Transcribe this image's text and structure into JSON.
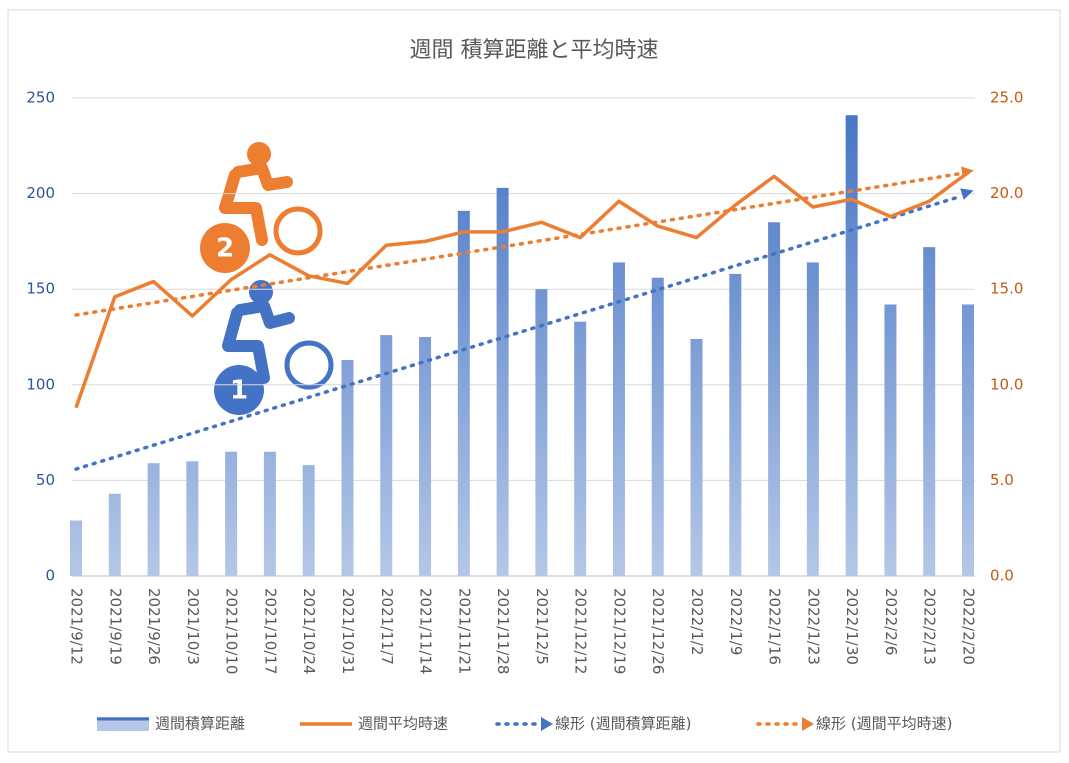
{
  "chart_data": {
    "type": "bar_line",
    "title": "週間 積算距離と平均時速",
    "categories": [
      "2021/9/12",
      "2021/9/19",
      "2021/9/26",
      "2021/10/3",
      "2021/10/10",
      "2021/10/17",
      "2021/10/24",
      "2021/10/31",
      "2021/11/7",
      "2021/11/14",
      "2021/11/21",
      "2021/11/28",
      "2021/12/5",
      "2021/12/12",
      "2021/12/19",
      "2021/12/26",
      "2022/1/2",
      "2022/1/9",
      "2022/1/16",
      "2022/1/23",
      "2022/1/30",
      "2022/2/6",
      "2022/2/13",
      "2022/2/20"
    ],
    "series": [
      {
        "name": "週間積算距離",
        "type": "bar",
        "color": "#4472c4",
        "light_color": "#b4c7e7",
        "values": [
          29,
          43,
          59,
          60,
          65,
          65,
          58,
          113,
          126,
          125,
          191,
          203,
          150,
          133,
          164,
          156,
          124,
          158,
          185,
          164,
          241,
          142,
          172,
          142
        ]
      },
      {
        "name": "週間平均時速",
        "type": "line",
        "axis": "y2",
        "color": "#ed7d31",
        "values": [
          8.8,
          14.6,
          15.4,
          13.6,
          15.5,
          16.8,
          15.7,
          15.3,
          17.3,
          17.5,
          18.0,
          18.0,
          18.5,
          17.7,
          19.6,
          18.3,
          17.7,
          19.4,
          20.9,
          19.3,
          19.7,
          18.8,
          19.6,
          21.1
        ]
      },
      {
        "name": "線形 (週間積算距離)",
        "type": "trendline",
        "trend_of": 0,
        "color": "#4472c4"
      },
      {
        "name": "線形 (週間平均時速)",
        "type": "trendline",
        "trend_of": 1,
        "axis": "y2",
        "color": "#ed7d31"
      }
    ],
    "ylim": [
      0,
      250
    ],
    "yticks": [
      0,
      50,
      100,
      150,
      200,
      250
    ],
    "y2lim": [
      0,
      25
    ],
    "y2ticks": [
      {
        "value": 0,
        "label": "0.0"
      },
      {
        "value": 5,
        "label": "5.0"
      },
      {
        "value": 10,
        "label": "10.0"
      },
      {
        "value": 15,
        "label": "15.0"
      },
      {
        "value": 20,
        "label": "20.0"
      },
      {
        "value": 25,
        "label": "25.0"
      }
    ],
    "grid": true,
    "legend": "bottom",
    "annotations": [
      "1",
      "2"
    ]
  }
}
